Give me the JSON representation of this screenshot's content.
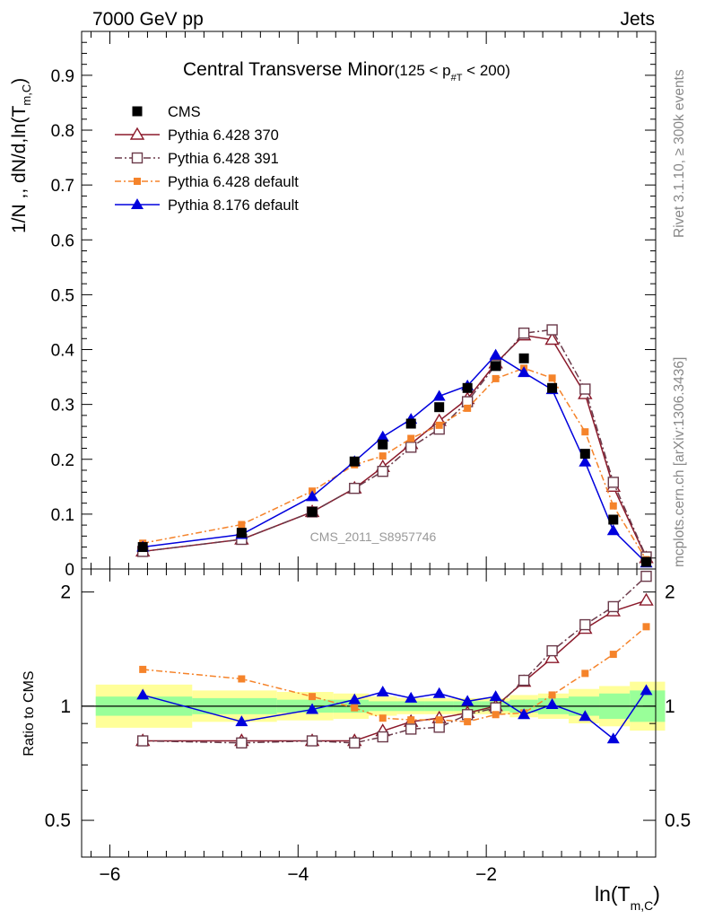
{
  "header": {
    "energy": "7000 GeV pp",
    "process": "Jets",
    "rivet": "Rivet 3.1.10, ≥ 300k events",
    "mcplots": "mcplots.cern.ch [arXiv:1306.3436]"
  },
  "chart_data": {
    "type": "line",
    "title": "Central Transverse Minor",
    "title_range": "(125 < p",
    "title_sub": "#T",
    "title_range_end": " < 200)",
    "analysis_id": "CMS_2011_S8957746",
    "xlabel": "ln(T",
    "xlabel_sub": "m,C",
    "xlabel_end": ")",
    "ylabel": "1/N ,, dN/d,ln(T",
    "ylabel_sub": "m,C",
    "ylabel_end": ")",
    "ratio_ylabel": "Ratio to CMS",
    "xlim": [
      -6.3,
      -0.2
    ],
    "ylim": [
      0,
      0.98
    ],
    "ratio_ylim": [
      0.4,
      2.3
    ],
    "ratio_log": true,
    "x_ticks": [
      "-6",
      "-4",
      "-2"
    ],
    "y_ticks": [
      "0",
      "0.1",
      "0.2",
      "0.3",
      "0.4",
      "0.5",
      "0.6",
      "0.7",
      "0.8",
      "0.9"
    ],
    "ratio_ticks": [
      "0.5",
      "1",
      "2"
    ],
    "legend_position": "top-left",
    "x": [
      -5.65,
      -4.6,
      -3.85,
      -3.4,
      -3.1,
      -2.8,
      -2.5,
      -2.2,
      -1.9,
      -1.6,
      -1.3,
      -0.95,
      -0.65,
      -0.3
    ],
    "series": [
      {
        "name": "CMS",
        "color": "#000000",
        "marker": "filled-square",
        "values": [
          0.04,
          0.066,
          0.104,
          0.196,
          0.227,
          0.265,
          0.295,
          0.33,
          0.37,
          0.384,
          0.33,
          0.21,
          0.09,
          0.013
        ],
        "ratio": [
          1,
          1,
          1,
          1,
          1,
          1,
          1,
          1,
          1,
          1,
          1,
          1,
          1,
          1
        ]
      },
      {
        "name": "Pythia 6.428 370",
        "color": "#8b1a2b",
        "marker": "open-triangle",
        "values": [
          0.032,
          0.054,
          0.104,
          0.147,
          0.186,
          0.228,
          0.27,
          0.31,
          0.375,
          0.426,
          0.418,
          0.319,
          0.15,
          0.02
        ],
        "ratio": [
          0.81,
          0.81,
          0.81,
          0.81,
          0.86,
          0.91,
          0.93,
          0.96,
          1.0,
          1.16,
          1.34,
          1.6,
          1.78,
          1.9
        ]
      },
      {
        "name": "Pythia 6.428 391",
        "color": "#6b3a4a",
        "marker": "open-square",
        "values": [
          0.032,
          0.054,
          0.104,
          0.147,
          0.178,
          0.222,
          0.255,
          0.305,
          0.372,
          0.43,
          0.436,
          0.328,
          0.158,
          0.022
        ],
        "ratio": [
          0.81,
          0.8,
          0.81,
          0.8,
          0.83,
          0.87,
          0.88,
          0.95,
          0.99,
          1.17,
          1.4,
          1.64,
          1.83,
          2.2
        ]
      },
      {
        "name": "Pythia 6.428 default",
        "color": "#f5832a",
        "marker": "filled-small-square",
        "values": [
          0.047,
          0.081,
          0.142,
          0.19,
          0.206,
          0.238,
          0.262,
          0.293,
          0.347,
          0.366,
          0.348,
          0.25,
          0.115,
          0.017
        ],
        "ratio": [
          1.25,
          1.18,
          1.06,
          0.99,
          0.93,
          0.92,
          0.92,
          0.91,
          0.95,
          0.96,
          1.07,
          1.22,
          1.37,
          1.62
        ]
      },
      {
        "name": "Pythia 8.176 default",
        "color": "#0000dd",
        "marker": "filled-triangle",
        "values": [
          0.04,
          0.063,
          0.132,
          0.196,
          0.241,
          0.273,
          0.315,
          0.334,
          0.39,
          0.358,
          0.327,
          0.195,
          0.07,
          0.011
        ],
        "ratio": [
          1.07,
          0.91,
          0.98,
          1.04,
          1.09,
          1.05,
          1.08,
          1.03,
          1.06,
          0.95,
          1.01,
          0.94,
          0.82,
          1.1
        ]
      }
    ]
  }
}
